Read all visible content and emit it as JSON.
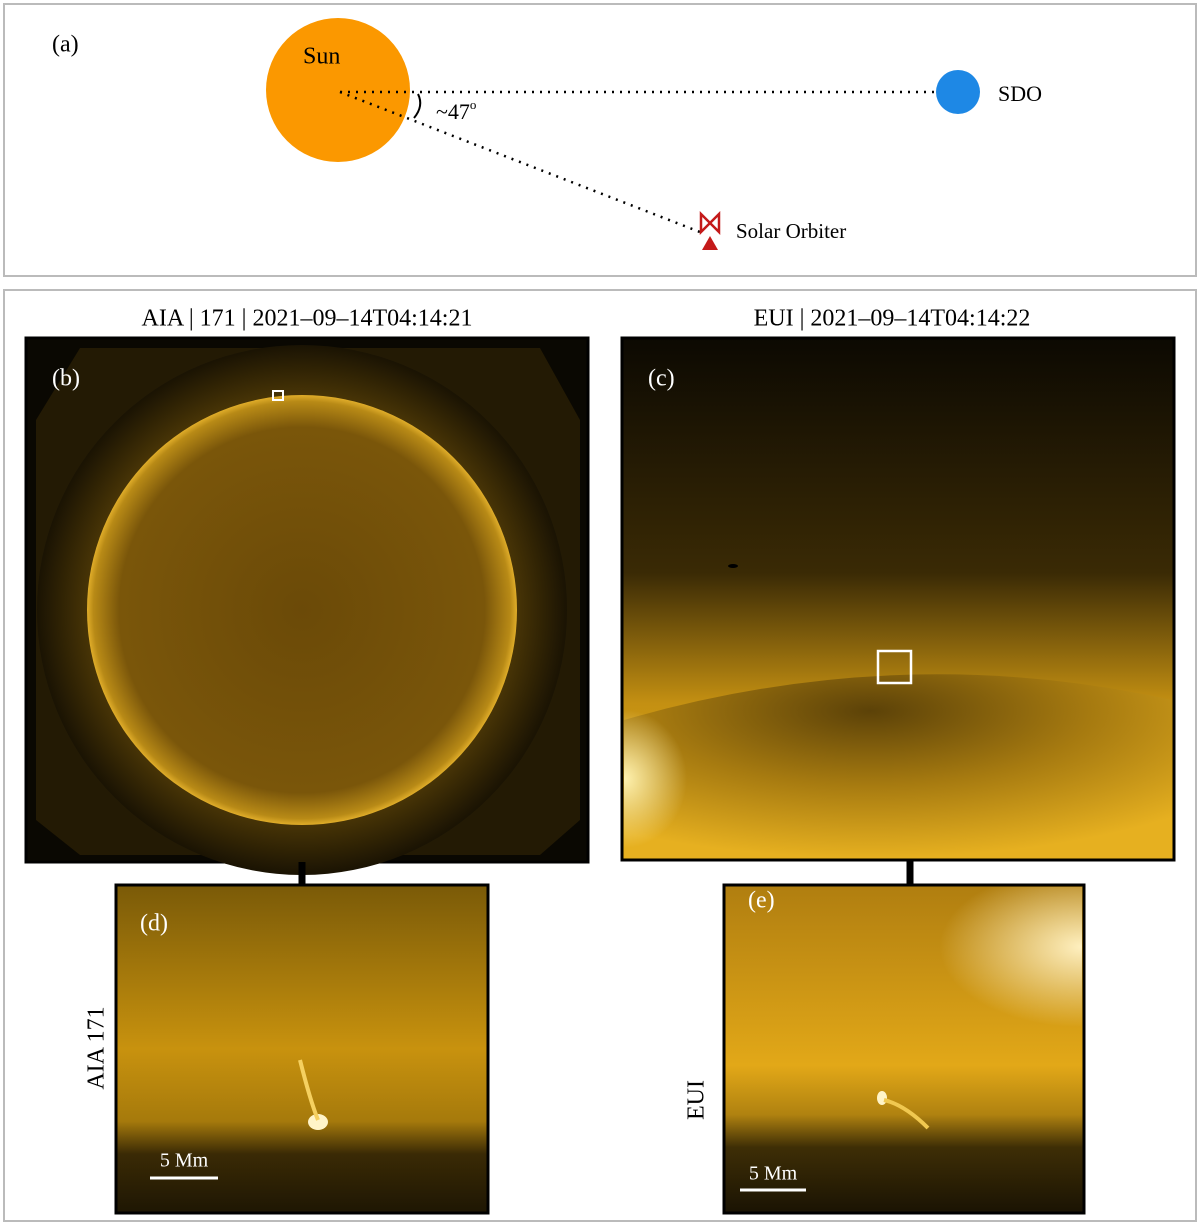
{
  "panel_a": {
    "label": "(a)",
    "sun": "Sun",
    "sdo": "SDO",
    "angle": "~47",
    "angle_superscript": "o",
    "solar_orbiter": "Solar Orbiter"
  },
  "panel_b": {
    "title": "AIA | 171 | 2021–09–14T04:14:21",
    "label": "(b)"
  },
  "panel_c": {
    "title": "EUI | 2021–09–14T04:14:22",
    "label": "(c)"
  },
  "panel_d": {
    "label": "(d)",
    "side_label": "AIA 171",
    "scale_bar": "5 Mm"
  },
  "panel_e": {
    "label": "(e)",
    "side_label": "EUI",
    "scale_bar": "5 Mm"
  }
}
